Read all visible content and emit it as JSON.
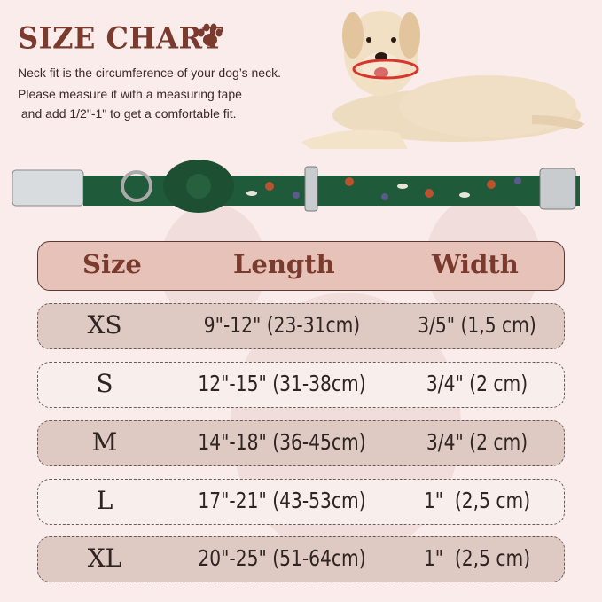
{
  "title": "SIZE CHART",
  "description": [
    "Neck fit is the circumference of your dog’s neck.",
    "Please measure it with a measuring tape",
    " and add 1/2\"-1\" to get a comfortable fit."
  ],
  "table": {
    "headers": [
      "Size",
      "Length",
      "Width"
    ],
    "rows": [
      {
        "size": "XS",
        "length": "9\"-12\" (23-31cm)",
        "width": "3/5\" (1,5 cm)"
      },
      {
        "size": "S",
        "length": "12\"-15\" (31-38cm)",
        "width": "3/4\" (2 cm)"
      },
      {
        "size": "M",
        "length": "14\"-18\" (36-45cm)",
        "width": "3/4\" (2 cm)"
      },
      {
        "size": "L",
        "length": "17\"-21\" (43-53cm)",
        "width": "1\"  (2,5 cm)"
      },
      {
        "size": "XL",
        "length": "20\"-25\" (51-64cm)",
        "width": "1\"  (2,5 cm)"
      }
    ]
  },
  "colors": {
    "title": "#7a3a2e",
    "header_fill": "#e7c2b8",
    "row_dark": "#dfc9c3",
    "row_light": "#f8eeec",
    "collar": "#1f5a3a"
  }
}
